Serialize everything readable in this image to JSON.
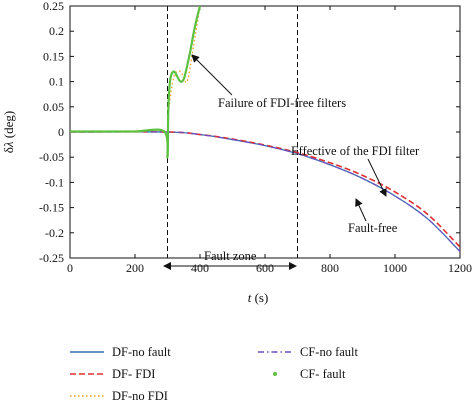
{
  "chart_data": {
    "type": "line",
    "xlabel": "t (s)",
    "ylabel": "δλ (deg)",
    "xlim": [
      0,
      1200
    ],
    "ylim": [
      -0.25,
      0.25
    ],
    "x_ticks": [
      0,
      200,
      400,
      600,
      800,
      1000,
      1200
    ],
    "y_ticks": [
      0.25,
      0.2,
      0.15,
      0.1,
      0.05,
      0,
      -0.05,
      -0.1,
      -0.15,
      -0.2,
      -0.25
    ],
    "x_tick_labels": [
      "0",
      "200",
      "400",
      "600",
      "800",
      "1000",
      "1200"
    ],
    "y_tick_labels": [
      "0.25",
      "0.2",
      "0.15",
      "0.1",
      "0.05",
      "0",
      "-0.05",
      "-0.1",
      "-0.15",
      "-0.2",
      "-0.25"
    ],
    "grid": false,
    "legend_position": "bottom",
    "vertical_lines": [
      300,
      700
    ],
    "annotations": {
      "failure": "Failure of FDI-free filters",
      "effective": "Effective of the FDI filter",
      "fault_free": "Fault-free",
      "fault_zone": "Fault zone"
    },
    "series": [
      {
        "name": "DF-no fault",
        "style": "solid",
        "color": "#3a6fb0",
        "x": [
          0,
          300,
          400,
          500,
          600,
          700,
          800,
          900,
          1000,
          1100,
          1200
        ],
        "y": [
          0,
          0,
          -0.005,
          -0.015,
          -0.027,
          -0.043,
          -0.065,
          -0.092,
          -0.127,
          -0.172,
          -0.237
        ]
      },
      {
        "name": "DF- FDI",
        "style": "dashed",
        "color": "#e03030",
        "x": [
          0,
          300,
          400,
          500,
          600,
          700,
          800,
          900,
          1000,
          1100,
          1200
        ],
        "y": [
          0,
          0,
          -0.005,
          -0.014,
          -0.026,
          -0.041,
          -0.061,
          -0.086,
          -0.119,
          -0.163,
          -0.228
        ]
      },
      {
        "name": "DF-no FDI",
        "style": "dotted",
        "color": "#f0a020",
        "x": [
          300,
          305,
          320,
          340,
          360,
          380,
          400
        ],
        "y": [
          0,
          0.05,
          0.11,
          0.12,
          0.1,
          0.17,
          0.25
        ]
      },
      {
        "name": "CF-no fault",
        "style": "dashdot",
        "color": "#6a4fc0",
        "x": [
          0,
          300,
          400,
          500,
          600,
          700,
          800,
          900,
          1000,
          1100,
          1200
        ],
        "y": [
          0,
          0,
          -0.005,
          -0.015,
          -0.027,
          -0.043,
          -0.065,
          -0.092,
          -0.127,
          -0.172,
          -0.237
        ]
      },
      {
        "name": "CF- fault",
        "style": "markers",
        "color": "#5cc040",
        "x": [
          0,
          100,
          200,
          290,
          300,
          302,
          305,
          310,
          320,
          330,
          340,
          350,
          360,
          370,
          380,
          390,
          400
        ],
        "y": [
          0.001,
          0.001,
          0.001,
          0.001,
          -0.05,
          0.03,
          0.08,
          0.11,
          0.12,
          0.11,
          0.1,
          0.105,
          0.13,
          0.16,
          0.195,
          0.225,
          0.25
        ]
      }
    ]
  }
}
